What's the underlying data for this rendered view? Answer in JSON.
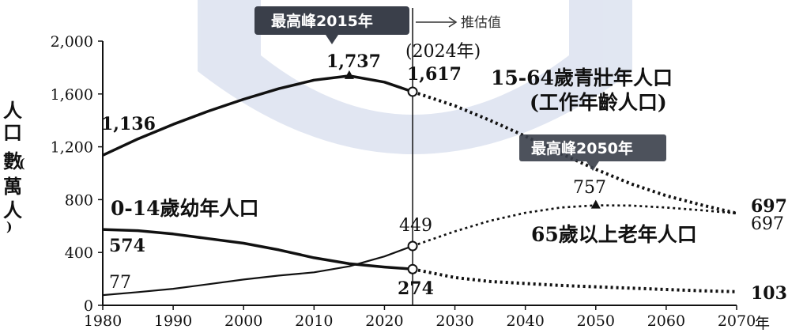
{
  "chart_data": {
    "type": "line",
    "xlabel": "年",
    "ylabel": "人口數(萬人)",
    "xlim": [
      1980,
      2070
    ],
    "ylim": [
      0,
      2000
    ],
    "x_ticks": [
      "1980",
      "1990",
      "2000",
      "2010",
      "2020",
      "2030",
      "2040",
      "2050",
      "2060",
      "2070"
    ],
    "y_ticks": [
      "0",
      "400",
      "800",
      "1,200",
      "1,600",
      "2,000"
    ],
    "projection_start": 2024,
    "projection_marker_year": "(2024年)",
    "projection_note": "推估值",
    "peak_2015_badge": "最高峰2015年",
    "peak_2050_badge": "最高峰2050年",
    "series": [
      {
        "name": "15-64歲青壯年人口",
        "subtitle": "(工作年齡人口)",
        "points": [
          [
            1980,
            1136
          ],
          [
            1985,
            1260
          ],
          [
            1990,
            1370
          ],
          [
            1995,
            1470
          ],
          [
            2000,
            1560
          ],
          [
            2005,
            1640
          ],
          [
            2010,
            1705
          ],
          [
            2015,
            1737
          ],
          [
            2020,
            1690
          ],
          [
            2024,
            1617
          ],
          [
            2030,
            1510
          ],
          [
            2035,
            1400
          ],
          [
            2040,
            1280
          ],
          [
            2045,
            1150
          ],
          [
            2050,
            1030
          ],
          [
            2055,
            920
          ],
          [
            2060,
            830
          ],
          [
            2065,
            760
          ],
          [
            2070,
            697
          ]
        ],
        "labels": {
          "start": "1,136",
          "peak": "1,737",
          "current": "1,617",
          "end": "697"
        }
      },
      {
        "name": "0-14歲幼年人口",
        "points": [
          [
            1980,
            574
          ],
          [
            1985,
            565
          ],
          [
            1990,
            540
          ],
          [
            1995,
            505
          ],
          [
            2000,
            470
          ],
          [
            2005,
            420
          ],
          [
            2010,
            360
          ],
          [
            2015,
            315
          ],
          [
            2020,
            290
          ],
          [
            2024,
            274
          ],
          [
            2030,
            210
          ],
          [
            2035,
            180
          ],
          [
            2040,
            165
          ],
          [
            2045,
            150
          ],
          [
            2050,
            140
          ],
          [
            2055,
            130
          ],
          [
            2060,
            120
          ],
          [
            2065,
            110
          ],
          [
            2070,
            103
          ]
        ],
        "labels": {
          "start": "574",
          "current": "274",
          "end": "103"
        }
      },
      {
        "name": "65歲以上老年人口",
        "points": [
          [
            1980,
            77
          ],
          [
            1985,
            100
          ],
          [
            1990,
            125
          ],
          [
            1995,
            160
          ],
          [
            2000,
            195
          ],
          [
            2005,
            225
          ],
          [
            2010,
            250
          ],
          [
            2015,
            295
          ],
          [
            2020,
            370
          ],
          [
            2024,
            449
          ],
          [
            2030,
            560
          ],
          [
            2035,
            640
          ],
          [
            2040,
            700
          ],
          [
            2045,
            740
          ],
          [
            2050,
            757
          ],
          [
            2055,
            755
          ],
          [
            2060,
            740
          ],
          [
            2065,
            720
          ],
          [
            2070,
            697
          ]
        ],
        "labels": {
          "start": "77",
          "current": "449",
          "peak": "757",
          "end": "697"
        }
      }
    ],
    "colors": {
      "line": "#111111",
      "badge": "#3a3f4a",
      "watermark": "#c9d3e8"
    }
  }
}
